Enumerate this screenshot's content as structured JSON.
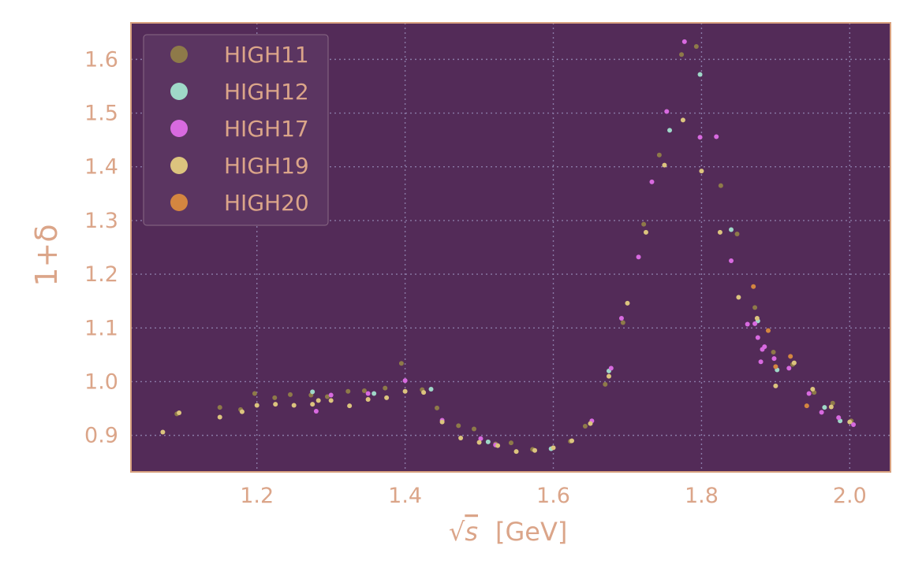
{
  "chart_data": {
    "type": "scatter",
    "xlabel_unit": "[GeV]",
    "ylabel": "1+δ",
    "xlim": [
      1.03,
      2.055
    ],
    "ylim": [
      0.832,
      1.668
    ],
    "xticks": [
      1.2,
      1.4,
      1.6,
      1.8,
      2.0
    ],
    "yticks": [
      0.9,
      1.0,
      1.1,
      1.2,
      1.3,
      1.4,
      1.5,
      1.6
    ],
    "grid": true,
    "legend_position": "top-left",
    "colors": {
      "plot_bg": "#532b58",
      "frame": "#d8a17f",
      "text": "#dba589",
      "grid": "#8a7aa6"
    },
    "series": [
      {
        "name": "HIGH11",
        "color": "#8e7a49",
        "points": [
          [
            1.092,
            0.94
          ],
          [
            1.15,
            0.952
          ],
          [
            1.178,
            0.948
          ],
          [
            1.197,
            0.978
          ],
          [
            1.224,
            0.97
          ],
          [
            1.245,
            0.976
          ],
          [
            1.273,
            0.975
          ],
          [
            1.295,
            0.972
          ],
          [
            1.323,
            0.982
          ],
          [
            1.345,
            0.983
          ],
          [
            1.373,
            0.988
          ],
          [
            1.395,
            1.034
          ],
          [
            1.423,
            0.985
          ],
          [
            1.443,
            0.951
          ],
          [
            1.472,
            0.918
          ],
          [
            1.493,
            0.912
          ],
          [
            1.522,
            0.884
          ],
          [
            1.543,
            0.886
          ],
          [
            1.572,
            0.874
          ],
          [
            1.623,
            0.889
          ],
          [
            1.643,
            0.917
          ],
          [
            1.67,
            0.995
          ],
          [
            1.694,
            1.11
          ],
          [
            1.722,
            1.293
          ],
          [
            1.743,
            1.422
          ],
          [
            1.773,
            1.609
          ],
          [
            1.793,
            1.624
          ],
          [
            1.826,
            1.365
          ],
          [
            1.848,
            1.275
          ],
          [
            1.872,
            1.138
          ],
          [
            1.897,
            1.055
          ],
          [
            1.923,
            1.032
          ],
          [
            1.952,
            0.98
          ],
          [
            1.977,
            0.96
          ],
          [
            2.002,
            0.927
          ]
        ]
      },
      {
        "name": "HIGH12",
        "color": "#9fd8c8",
        "points": [
          [
            1.275,
            0.981
          ],
          [
            1.358,
            0.978
          ],
          [
            1.435,
            0.986
          ],
          [
            1.512,
            0.888
          ],
          [
            1.597,
            0.875
          ],
          [
            1.675,
            1.02
          ],
          [
            1.757,
            1.468
          ],
          [
            1.798,
            1.572
          ],
          [
            1.84,
            1.283
          ],
          [
            1.876,
            1.113
          ],
          [
            1.902,
            1.022
          ],
          [
            1.966,
            0.952
          ],
          [
            1.987,
            0.927
          ]
        ]
      },
      {
        "name": "HIGH17",
        "color": "#d86ae0",
        "points": [
          [
            1.28,
            0.945
          ],
          [
            1.3,
            0.975
          ],
          [
            1.35,
            0.978
          ],
          [
            1.4,
            1.002
          ],
          [
            1.45,
            0.928
          ],
          [
            1.502,
            0.894
          ],
          [
            1.522,
            0.882
          ],
          [
            1.652,
            0.927
          ],
          [
            1.678,
            1.025
          ],
          [
            1.692,
            1.118
          ],
          [
            1.715,
            1.232
          ],
          [
            1.733,
            1.372
          ],
          [
            1.753,
            1.503
          ],
          [
            1.777,
            1.633
          ],
          [
            1.798,
            1.455
          ],
          [
            1.82,
            1.456
          ],
          [
            1.84,
            1.225
          ],
          [
            1.862,
            1.107
          ],
          [
            1.872,
            1.108
          ],
          [
            1.876,
            1.082
          ],
          [
            1.88,
            1.037
          ],
          [
            1.882,
            1.06
          ],
          [
            1.885,
            1.065
          ],
          [
            1.898,
            1.043
          ],
          [
            1.918,
            1.025
          ],
          [
            1.945,
            0.978
          ],
          [
            1.962,
            0.943
          ],
          [
            1.985,
            0.933
          ],
          [
            2.005,
            0.92
          ]
        ]
      },
      {
        "name": "HIGH19",
        "color": "#dcc47e",
        "points": [
          [
            1.073,
            0.906
          ],
          [
            1.095,
            0.942
          ],
          [
            1.15,
            0.934
          ],
          [
            1.18,
            0.944
          ],
          [
            1.2,
            0.956
          ],
          [
            1.225,
            0.958
          ],
          [
            1.25,
            0.956
          ],
          [
            1.275,
            0.958
          ],
          [
            1.283,
            0.965
          ],
          [
            1.3,
            0.965
          ],
          [
            1.325,
            0.955
          ],
          [
            1.35,
            0.967
          ],
          [
            1.375,
            0.97
          ],
          [
            1.4,
            0.982
          ],
          [
            1.425,
            0.98
          ],
          [
            1.45,
            0.925
          ],
          [
            1.475,
            0.895
          ],
          [
            1.5,
            0.887
          ],
          [
            1.525,
            0.881
          ],
          [
            1.55,
            0.87
          ],
          [
            1.575,
            0.872
          ],
          [
            1.6,
            0.877
          ],
          [
            1.625,
            0.89
          ],
          [
            1.65,
            0.922
          ],
          [
            1.675,
            1.01
          ],
          [
            1.7,
            1.146
          ],
          [
            1.725,
            1.278
          ],
          [
            1.75,
            1.403
          ],
          [
            1.775,
            1.487
          ],
          [
            1.8,
            1.392
          ],
          [
            1.825,
            1.278
          ],
          [
            1.85,
            1.157
          ],
          [
            1.875,
            1.118
          ],
          [
            1.9,
            0.992
          ],
          [
            1.925,
            1.035
          ],
          [
            1.95,
            0.986
          ],
          [
            1.975,
            0.953
          ],
          [
            2.0,
            0.925
          ]
        ]
      },
      {
        "name": "HIGH20",
        "color": "#d48640",
        "points": [
          [
            1.87,
            1.177
          ],
          [
            1.89,
            1.095
          ],
          [
            1.9,
            1.028
          ],
          [
            1.92,
            1.047
          ],
          [
            1.942,
            0.955
          ]
        ]
      }
    ]
  }
}
